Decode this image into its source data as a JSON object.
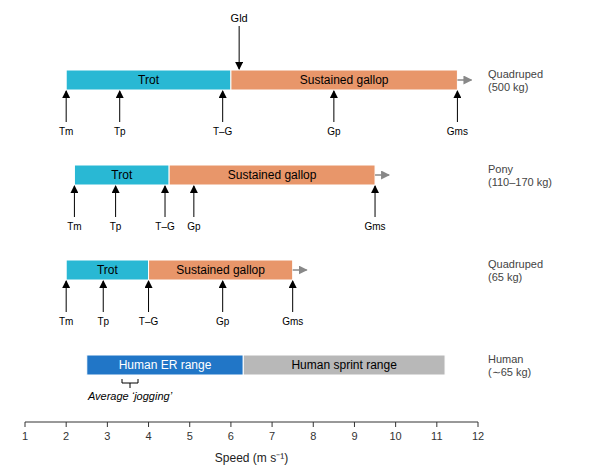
{
  "chart_data": {
    "type": "bar",
    "orientation": "horizontal",
    "xlabel": "Speed  (m s⁻¹)",
    "xlim": [
      1,
      12
    ],
    "xticks": [
      1,
      2,
      3,
      4,
      5,
      6,
      7,
      8,
      9,
      10,
      11,
      12
    ],
    "grid": false,
    "categories": [
      "Quadruped\n(500 kg)",
      "Pony\n(110–170 kg)",
      "Quadruped\n(65 kg)",
      "Human\n(∼65 kg)"
    ],
    "series": [
      {
        "name": "Trot",
        "color": "#29b8d4",
        "values": [
          [
            2.0,
            6.0
          ],
          [
            2.2,
            4.5
          ],
          [
            2.0,
            4.0
          ],
          null
        ]
      },
      {
        "name": "Sustained gallop",
        "color": "#e8966a",
        "values": [
          [
            6.0,
            11.5
          ],
          [
            4.5,
            9.5
          ],
          [
            4.0,
            7.5
          ],
          null
        ]
      },
      {
        "name": "Human ER range",
        "color": "#2176c7",
        "values": [
          null,
          null,
          null,
          [
            2.5,
            6.3
          ]
        ]
      },
      {
        "name": "Human sprint range",
        "color": "#b8b8b8",
        "values": [
          null,
          null,
          null,
          [
            6.3,
            11.2
          ]
        ]
      }
    ],
    "point_markers": [
      [
        {
          "x": 2.0,
          "label": "Tm"
        },
        {
          "x": 3.3,
          "label": "Tp"
        },
        {
          "x": 5.8,
          "label": "T–G"
        },
        {
          "x": 8.5,
          "label": "Gp"
        },
        {
          "x": 11.5,
          "label": "Gms"
        }
      ],
      [
        {
          "x": 2.2,
          "label": "Tm"
        },
        {
          "x": 3.2,
          "label": "Tp"
        },
        {
          "x": 4.4,
          "label": "T–G"
        },
        {
          "x": 5.1,
          "label": "Gp"
        },
        {
          "x": 9.5,
          "label": "Gms"
        }
      ],
      [
        {
          "x": 2.0,
          "label": "Tm"
        },
        {
          "x": 2.9,
          "label": "Tp"
        },
        {
          "x": 4.0,
          "label": "T–G"
        },
        {
          "x": 5.8,
          "label": "Gp"
        },
        {
          "x": 7.5,
          "label": "Gms"
        }
      ],
      []
    ],
    "above_markers": [
      {
        "x": 6.2,
        "label": "Gld"
      },
      null,
      null,
      null
    ],
    "arrow_right": [
      true,
      true,
      true,
      false
    ],
    "jogging": {
      "x": 3.55,
      "label": "Average ‘jogging’"
    }
  }
}
